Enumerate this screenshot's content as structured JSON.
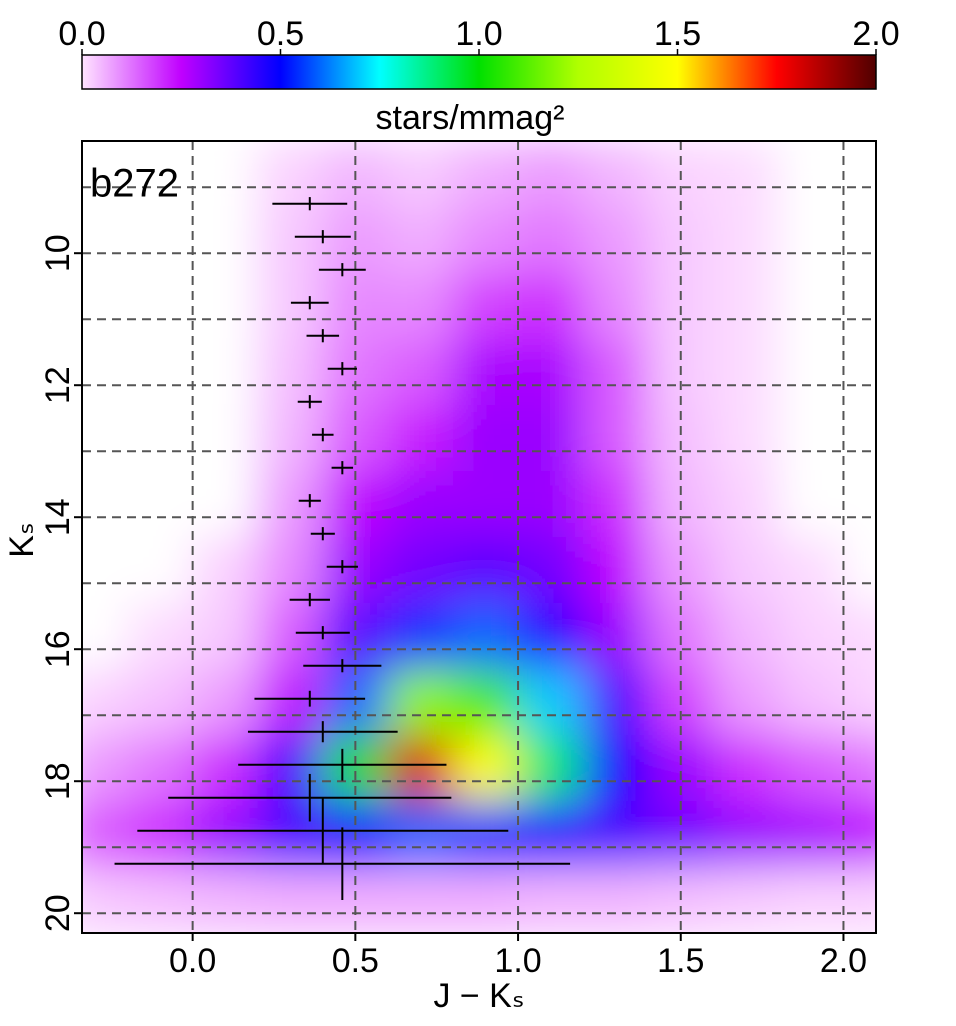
{
  "chart_data": {
    "type": "hess",
    "annotation": "b272",
    "xlabel": "J − Kₛ",
    "ylabel": "Kₛ",
    "xlim": [
      -0.34,
      2.1
    ],
    "ylim": [
      20.3,
      8.3
    ],
    "xticks": [
      {
        "value": 0,
        "label": "0.0"
      },
      0.5,
      {
        "value": 1,
        "label": "1.0"
      },
      1.5,
      {
        "value": 2,
        "label": "2.0"
      }
    ],
    "yticks": [
      10,
      12,
      14,
      16,
      18,
      20
    ],
    "yminor": [
      9,
      11,
      13,
      15,
      17,
      19
    ],
    "grid": true,
    "colorbar": {
      "label": "stars/mmag²",
      "lim": [
        0,
        2
      ],
      "ticks": [
        {
          "value": 0,
          "label": "0.0"
        },
        0.5,
        {
          "value": 1,
          "label": "1.0"
        },
        1.5,
        {
          "value": 2,
          "label": "2.0"
        }
      ],
      "colormap": [
        "#ffe4ff",
        "#c000ff",
        "#0000ff",
        "#00ffff",
        "#00e000",
        "#b0ff00",
        "#ffff00",
        "#ff0000",
        "#500000"
      ]
    },
    "density": {
      "xbins": [
        -0.4,
        -0.2,
        0,
        0.2,
        0.4,
        0.6,
        0.8,
        1,
        1.2,
        1.4,
        1.6,
        1.8,
        2,
        2.2
      ],
      "ybins": [
        8.3,
        9.3,
        10.3,
        11.3,
        12.3,
        13.3,
        14.3,
        15.3,
        16.3,
        17.3,
        18.3,
        19.3,
        20.3
      ],
      "values": [
        [
          0,
          0,
          0,
          0.02,
          0.05,
          0.03,
          0.06,
          0.08,
          0.05,
          0.02,
          0.01,
          0,
          0
        ],
        [
          0,
          0,
          0,
          0.03,
          0.08,
          0.06,
          0.1,
          0.12,
          0.08,
          0.03,
          0.01,
          0,
          0
        ],
        [
          0,
          0,
          0,
          0.03,
          0.1,
          0.1,
          0.18,
          0.2,
          0.1,
          0.03,
          0.01,
          0,
          0
        ],
        [
          0,
          0,
          0,
          0.04,
          0.12,
          0.15,
          0.28,
          0.28,
          0.15,
          0.03,
          0.01,
          0,
          0
        ],
        [
          0,
          0,
          0,
          0.05,
          0.15,
          0.22,
          0.3,
          0.3,
          0.15,
          0.04,
          0.01,
          0,
          0
        ],
        [
          0,
          0,
          0,
          0.08,
          0.25,
          0.3,
          0.3,
          0.3,
          0.2,
          0.05,
          0.02,
          0,
          0
        ],
        [
          0,
          0,
          0.02,
          0.1,
          0.3,
          0.35,
          0.38,
          0.35,
          0.25,
          0.08,
          0.03,
          0.01,
          0
        ],
        [
          0,
          0.01,
          0.03,
          0.15,
          0.38,
          0.55,
          0.6,
          0.45,
          0.3,
          0.12,
          0.05,
          0.02,
          0.01
        ],
        [
          0.02,
          0.04,
          0.08,
          0.25,
          0.6,
          1.2,
          1.1,
          0.7,
          0.4,
          0.18,
          0.08,
          0.04,
          0.02
        ],
        [
          0.08,
          0.12,
          0.2,
          0.4,
          1.0,
          1.8,
          1.5,
          0.9,
          0.5,
          0.3,
          0.2,
          0.15,
          0.12
        ],
        [
          0.15,
          0.2,
          0.3,
          0.4,
          0.5,
          0.6,
          0.55,
          0.45,
          0.4,
          0.35,
          0.3,
          0.28,
          0.25
        ],
        [
          0.03,
          0.04,
          0.05,
          0.06,
          0.06,
          0.06,
          0.06,
          0.05,
          0.05,
          0.04,
          0.03,
          0.02,
          0.02
        ]
      ]
    },
    "errorbars": {
      "color": "#000000",
      "x": [
        0.36,
        0.4,
        0.46,
        0.36,
        0.4,
        0.46,
        0.36,
        0.4,
        0.46,
        0.36,
        0.4,
        0.46,
        0.36,
        0.4,
        0.46,
        0.36,
        0.4,
        0.46,
        0.36,
        0.4,
        0.46
      ],
      "y": [
        9.25,
        9.75,
        10.25,
        10.75,
        11.25,
        11.75,
        12.25,
        12.75,
        13.25,
        13.75,
        14.25,
        14.75,
        15.25,
        15.75,
        16.25,
        16.75,
        17.25,
        17.75,
        18.25,
        18.75,
        19.25
      ],
      "xerr": [
        0.115,
        0.086,
        0.072,
        0.058,
        0.05,
        0.045,
        0.037,
        0.033,
        0.033,
        0.034,
        0.037,
        0.048,
        0.062,
        0.083,
        0.12,
        0.17,
        0.23,
        0.32,
        0.435,
        0.57,
        0.7
      ],
      "yerr": [
        0.1,
        0.1,
        0.1,
        0.1,
        0.1,
        0.1,
        0.1,
        0.1,
        0.1,
        0.1,
        0.1,
        0.1,
        0.1,
        0.1,
        0.1,
        0.12,
        0.16,
        0.24,
        0.36,
        0.5,
        0.55
      ]
    }
  }
}
